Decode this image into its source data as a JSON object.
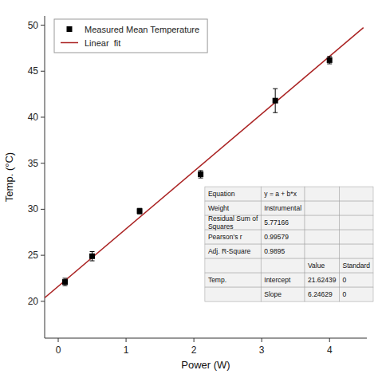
{
  "chart_data": {
    "type": "scatter",
    "xlabel": "Power (W)",
    "ylabel": "Temp. (°C)",
    "xlim": [
      -0.2,
      4.55
    ],
    "ylim": [
      16,
      51
    ],
    "xticks": [
      0,
      1,
      2,
      3,
      4
    ],
    "yticks": [
      20,
      25,
      30,
      35,
      40,
      45,
      50
    ],
    "grid": false,
    "legend": "upper left",
    "series": [
      {
        "name": "Measured Mean Temperature",
        "type": "scatter",
        "marker": "square",
        "color": "#000000",
        "x": [
          0.1,
          0.5,
          1.2,
          2.1,
          3.2,
          4.0
        ],
        "values": [
          22.1,
          24.9,
          29.8,
          33.8,
          41.8,
          46.2
        ],
        "errors": [
          0.4,
          0.5,
          0.3,
          0.4,
          1.3,
          0.4
        ]
      },
      {
        "name": "Linear  fit",
        "type": "line",
        "line_style": "solid",
        "color": "#aa2222",
        "x": [
          -0.2,
          4.5
        ],
        "values": [
          20.375132,
          49.732695
        ]
      }
    ],
    "table": {
      "rows": [
        [
          "Equation",
          "y = a + b*x",
          null,
          null
        ],
        [
          "Weight",
          "Instrumental",
          null,
          null
        ],
        [
          "Residual Sum of\nSquares",
          "5.77166",
          null,
          null
        ],
        [
          "Pearson's r",
          "0.99579",
          null,
          null
        ],
        [
          "Adj. R-Square",
          "0.9895",
          null,
          null
        ],
        [
          null,
          null,
          "Value",
          "Standard"
        ],
        [
          "Temp.",
          "Intercept",
          "21.62439",
          "0"
        ],
        [
          null,
          "Slope",
          "6.24629",
          "0"
        ]
      ]
    }
  }
}
